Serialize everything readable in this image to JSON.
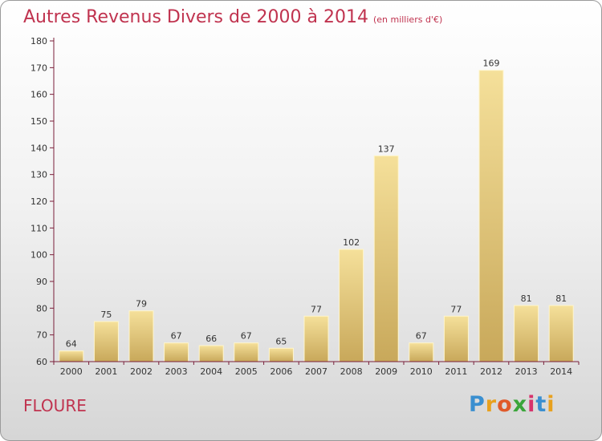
{
  "header": {
    "title": "Autres Revenus Divers de 2000 à 2014",
    "subtitle": "(en milliers d'€)"
  },
  "footer": {
    "town": "FLOURE",
    "logo_letters": [
      "P",
      "r",
      "o",
      "x",
      "i",
      "t",
      "i"
    ],
    "logo_colors": [
      "#3a8fd0",
      "#e8a11e",
      "#e05a2a",
      "#3aa53a",
      "#d6336c",
      "#3a8fd0",
      "#e8a11e"
    ]
  },
  "colors": {
    "bar_top": "#f5e09a",
    "bar_bottom": "#c8a85a",
    "axis": "#7a1f3a",
    "title": "#c0334f"
  },
  "chart_data": {
    "type": "bar",
    "title": "Autres Revenus Divers de 2000 à 2014",
    "subtitle": "(en milliers d'€)",
    "categories": [
      "2000",
      "2001",
      "2002",
      "2003",
      "2004",
      "2005",
      "2006",
      "2007",
      "2008",
      "2009",
      "2010",
      "2011",
      "2012",
      "2013",
      "2014"
    ],
    "values": [
      64,
      75,
      79,
      67,
      66,
      67,
      65,
      77,
      102,
      137,
      67,
      77,
      169,
      81,
      81
    ],
    "ylim": [
      60,
      180
    ],
    "yticks": [
      60,
      70,
      80,
      90,
      100,
      110,
      120,
      130,
      140,
      150,
      160,
      170,
      180
    ],
    "grid": false,
    "data_labels": true
  }
}
